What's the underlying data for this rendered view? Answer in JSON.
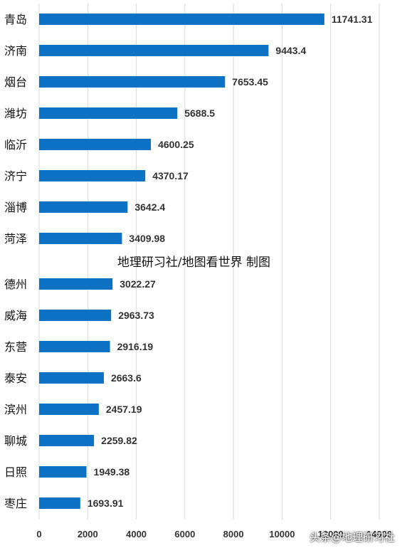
{
  "chart_data": {
    "type": "bar",
    "orientation": "horizontal",
    "categories": [
      "青岛",
      "济南",
      "烟台",
      "潍坊",
      "临沂",
      "济宁",
      "淄博",
      "菏泽",
      "德州",
      "威海",
      "东营",
      "泰安",
      "滨州",
      "聊城",
      "日照",
      "枣庄"
    ],
    "values": [
      11741.31,
      9443.4,
      7653.45,
      5688.5,
      4600.25,
      4370.17,
      3642.4,
      3409.98,
      3022.27,
      2963.73,
      2916.19,
      2663.6,
      2457.19,
      2259.82,
      1949.38,
      1693.91
    ],
    "value_labels": [
      "11741.31",
      "9443.4",
      "7653.45",
      "5688.5",
      "4600.25",
      "4370.17",
      "3642.4",
      "3409.98",
      "3022.27",
      "2963.73",
      "2916.19",
      "2663.6",
      "2457.19",
      "2259.82",
      "1949.38",
      "1693.91"
    ],
    "xlim": [
      0,
      14000
    ],
    "x_ticks": [
      "0",
      "2000",
      "4000",
      "6000",
      "8000",
      "10000",
      "12000",
      "14000"
    ],
    "grid": true,
    "bar_color": "#0e72c4",
    "annotation": "地理研习社/地图看世界  制图"
  },
  "watermark": "头条@地理研习社"
}
